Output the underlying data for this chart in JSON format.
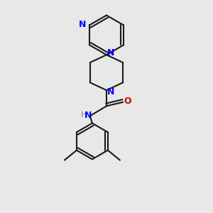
{
  "bg_color": "#e8e8e8",
  "bond_color": "#1a1a1a",
  "N_color": "#0000ff",
  "O_color": "#cc0000",
  "line_width": 1.5,
  "dbo_inner": 0.012,
  "font_size": 9,
  "fig_size": [
    3.0,
    3.0
  ],
  "dpi": 100,
  "xlim": [
    0.15,
    0.85
  ],
  "ylim": [
    0.02,
    0.98
  ]
}
